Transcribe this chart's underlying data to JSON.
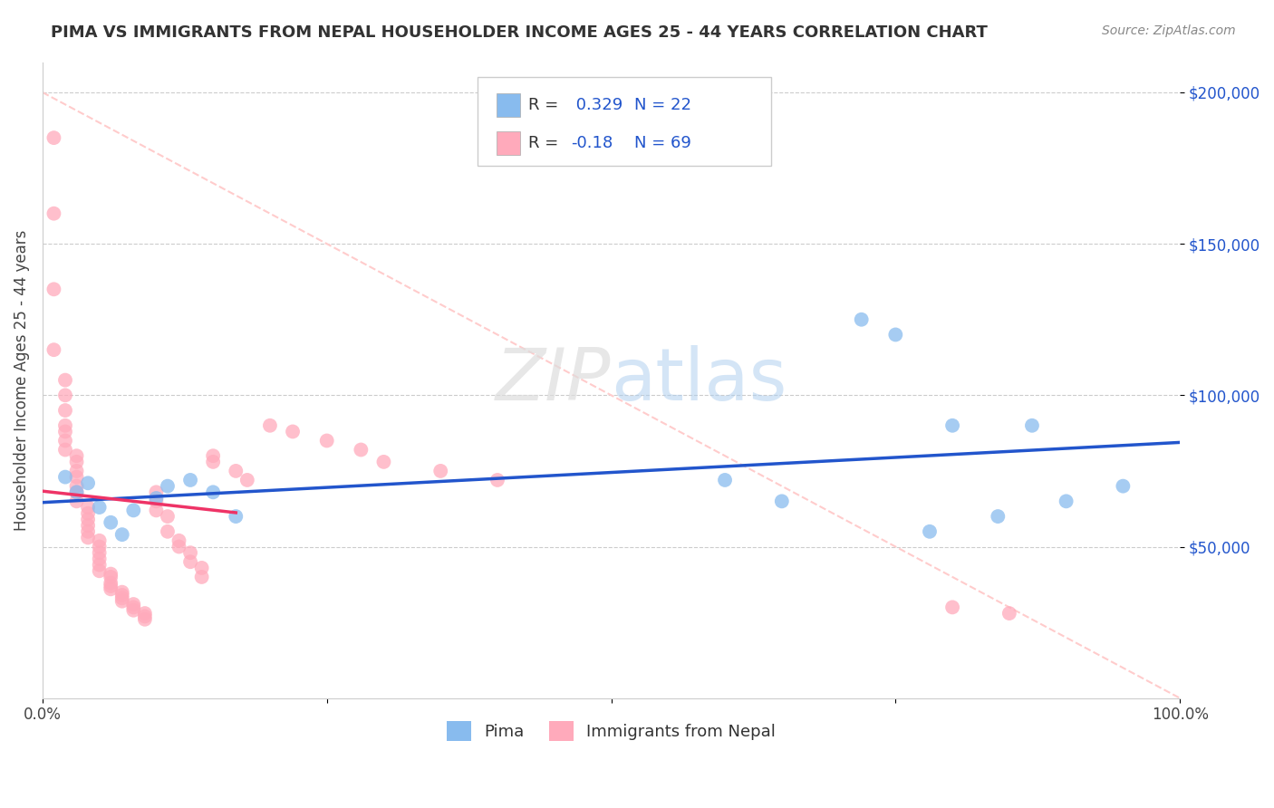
{
  "title": "PIMA VS IMMIGRANTS FROM NEPAL HOUSEHOLDER INCOME AGES 25 - 44 YEARS CORRELATION CHART",
  "source": "Source: ZipAtlas.com",
  "ylabel": "Householder Income Ages 25 - 44 years",
  "xlim": [
    0,
    1.0
  ],
  "ylim": [
    0,
    210000
  ],
  "ytick_labels": [
    "$50,000",
    "$100,000",
    "$150,000",
    "$200,000"
  ],
  "ytick_values": [
    50000,
    100000,
    150000,
    200000
  ],
  "r_pima": 0.329,
  "n_pima": 22,
  "r_nepal": -0.18,
  "n_nepal": 69,
  "blue_color": "#88BBEE",
  "pink_color": "#FFAABB",
  "trend_blue": "#2255CC",
  "trend_pink": "#EE3366",
  "legend_label_pima": "Pima",
  "legend_label_nepal": "Immigrants from Nepal",
  "pima_x": [
    0.02,
    0.03,
    0.04,
    0.05,
    0.06,
    0.07,
    0.08,
    0.1,
    0.11,
    0.13,
    0.15,
    0.17,
    0.6,
    0.65,
    0.72,
    0.75,
    0.78,
    0.8,
    0.84,
    0.87,
    0.9,
    0.95
  ],
  "pima_y": [
    73000,
    68000,
    71000,
    63000,
    58000,
    54000,
    62000,
    66000,
    70000,
    72000,
    68000,
    60000,
    72000,
    65000,
    125000,
    120000,
    55000,
    90000,
    60000,
    90000,
    65000,
    70000
  ],
  "nepal_x": [
    0.01,
    0.01,
    0.01,
    0.01,
    0.02,
    0.02,
    0.02,
    0.02,
    0.02,
    0.02,
    0.02,
    0.03,
    0.03,
    0.03,
    0.03,
    0.03,
    0.03,
    0.03,
    0.04,
    0.04,
    0.04,
    0.04,
    0.04,
    0.04,
    0.05,
    0.05,
    0.05,
    0.05,
    0.05,
    0.05,
    0.06,
    0.06,
    0.06,
    0.06,
    0.06,
    0.07,
    0.07,
    0.07,
    0.07,
    0.08,
    0.08,
    0.08,
    0.09,
    0.09,
    0.09,
    0.1,
    0.1,
    0.1,
    0.11,
    0.11,
    0.12,
    0.12,
    0.13,
    0.13,
    0.14,
    0.14,
    0.15,
    0.15,
    0.17,
    0.18,
    0.2,
    0.22,
    0.25,
    0.28,
    0.3,
    0.35,
    0.4,
    0.8,
    0.85
  ],
  "nepal_y": [
    185000,
    160000,
    135000,
    115000,
    105000,
    100000,
    95000,
    90000,
    88000,
    85000,
    82000,
    80000,
    78000,
    75000,
    73000,
    70000,
    68000,
    65000,
    63000,
    61000,
    59000,
    57000,
    55000,
    53000,
    52000,
    50000,
    48000,
    46000,
    44000,
    42000,
    41000,
    40000,
    38000,
    37000,
    36000,
    35000,
    34000,
    33000,
    32000,
    31000,
    30000,
    29000,
    28000,
    27000,
    26000,
    68000,
    65000,
    62000,
    60000,
    55000,
    52000,
    50000,
    48000,
    45000,
    43000,
    40000,
    80000,
    78000,
    75000,
    72000,
    90000,
    88000,
    85000,
    82000,
    78000,
    75000,
    72000,
    30000,
    28000
  ]
}
